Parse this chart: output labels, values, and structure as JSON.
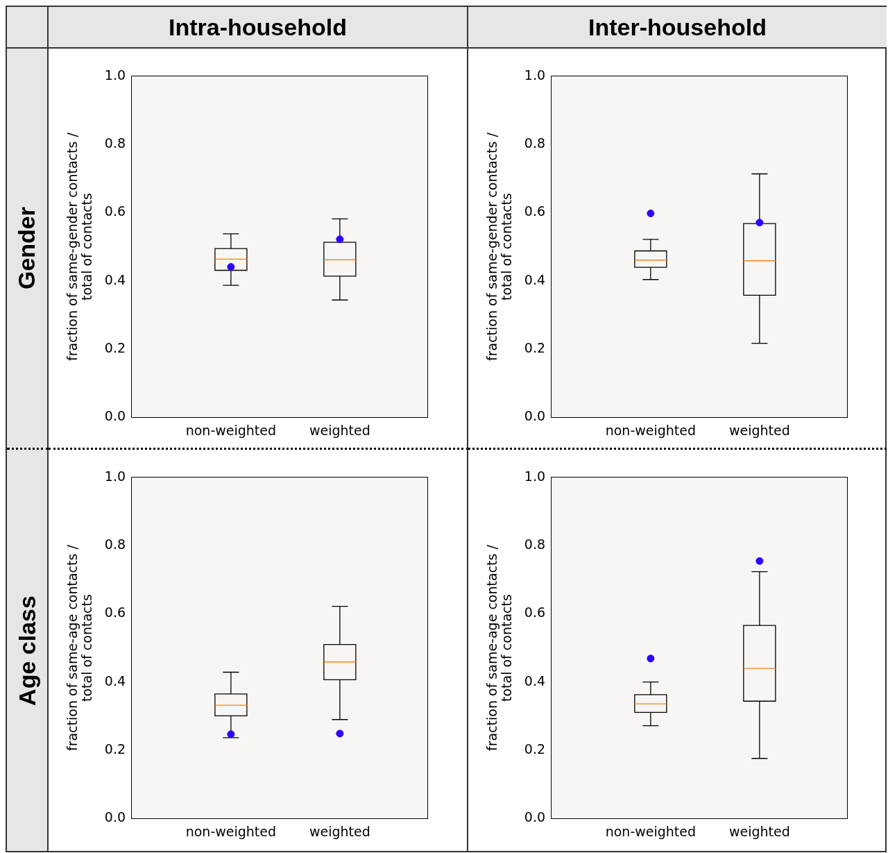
{
  "chart_data": [
    {
      "type": "box",
      "title": "Intra-household",
      "annotations": [
        "Gender"
      ],
      "ylabel": "fraction of same-gender contacts / total of contacts",
      "categories": [
        "non-weighted",
        "weighted"
      ],
      "ylim": [
        0,
        1
      ],
      "yticks": [
        {
          "value": 0,
          "label": "0.0"
        },
        {
          "value": 0.2,
          "label": "0.2"
        },
        {
          "value": 0.4,
          "label": "0.4"
        },
        {
          "value": 0.6,
          "label": "0.6"
        },
        {
          "value": 0.8,
          "label": "0.8"
        },
        {
          "value": 1,
          "label": "1.0"
        }
      ],
      "grid": false,
      "legend": false,
      "marker": "circle",
      "boxes": [
        {
          "low": 0.387,
          "q1": 0.431,
          "median": 0.464,
          "q3": 0.495,
          "high": 0.538
        },
        {
          "low": 0.344,
          "q1": 0.414,
          "median": 0.462,
          "q3": 0.513,
          "high": 0.582
        }
      ],
      "series": [
        {
          "type": "scatter",
          "x": [
            "non-weighted",
            "weighted"
          ],
          "values": [
            0.441,
            0.522
          ],
          "color": "#2f00ff"
        }
      ]
    },
    {
      "type": "box",
      "title": "Inter-household",
      "ylabel": "fraction of same-gender contacts / total of contacts",
      "categories": [
        "non-weighted",
        "weighted"
      ],
      "ylim": [
        0,
        1
      ],
      "yticks": [
        {
          "value": 0,
          "label": "0.0"
        },
        {
          "value": 0.2,
          "label": "0.2"
        },
        {
          "value": 0.4,
          "label": "0.4"
        },
        {
          "value": 0.6,
          "label": "0.6"
        },
        {
          "value": 0.8,
          "label": "0.8"
        },
        {
          "value": 1,
          "label": "1.0"
        }
      ],
      "grid": false,
      "legend": false,
      "marker": "circle",
      "boxes": [
        {
          "low": 0.404,
          "q1": 0.44,
          "median": 0.461,
          "q3": 0.488,
          "high": 0.522
        },
        {
          "low": 0.217,
          "q1": 0.358,
          "median": 0.459,
          "q3": 0.568,
          "high": 0.714
        }
      ],
      "series": [
        {
          "type": "scatter",
          "x": [
            "non-weighted",
            "weighted"
          ],
          "values": [
            0.598,
            0.571
          ],
          "color": "#2f00ff"
        }
      ]
    },
    {
      "type": "box",
      "annotations": [
        "Age class"
      ],
      "ylabel": "fraction of same-age contacts / total of contacts",
      "categories": [
        "non-weighted",
        "weighted"
      ],
      "ylim": [
        0,
        1
      ],
      "yticks": [
        {
          "value": 0,
          "label": "0.0"
        },
        {
          "value": 0.2,
          "label": "0.2"
        },
        {
          "value": 0.4,
          "label": "0.4"
        },
        {
          "value": 0.6,
          "label": "0.6"
        },
        {
          "value": 0.8,
          "label": "0.8"
        },
        {
          "value": 1,
          "label": "1.0"
        }
      ],
      "grid": false,
      "legend": false,
      "marker": "circle",
      "boxes": [
        {
          "low": 0.237,
          "q1": 0.301,
          "median": 0.332,
          "q3": 0.365,
          "high": 0.429
        },
        {
          "low": 0.29,
          "q1": 0.407,
          "median": 0.459,
          "q3": 0.51,
          "high": 0.622
        }
      ],
      "series": [
        {
          "type": "scatter",
          "x": [
            "non-weighted",
            "weighted"
          ],
          "values": [
            0.247,
            0.249
          ],
          "color": "#2f00ff"
        }
      ]
    },
    {
      "type": "box",
      "ylabel": "fraction of same-age contacts / total of contacts",
      "categories": [
        "non-weighted",
        "weighted"
      ],
      "ylim": [
        0,
        1
      ],
      "yticks": [
        {
          "value": 0,
          "label": "0.0"
        },
        {
          "value": 0.2,
          "label": "0.2"
        },
        {
          "value": 0.4,
          "label": "0.4"
        },
        {
          "value": 0.6,
          "label": "0.6"
        },
        {
          "value": 0.8,
          "label": "0.8"
        },
        {
          "value": 1,
          "label": "1.0"
        }
      ],
      "grid": false,
      "legend": false,
      "marker": "circle",
      "boxes": [
        {
          "low": 0.272,
          "q1": 0.311,
          "median": 0.336,
          "q3": 0.363,
          "high": 0.4
        },
        {
          "low": 0.176,
          "q1": 0.344,
          "median": 0.44,
          "q3": 0.566,
          "high": 0.724
        }
      ],
      "series": [
        {
          "type": "scatter",
          "x": [
            "non-weighted",
            "weighted"
          ],
          "values": [
            0.469,
            0.755
          ],
          "color": "#2f00ff"
        }
      ]
    }
  ]
}
